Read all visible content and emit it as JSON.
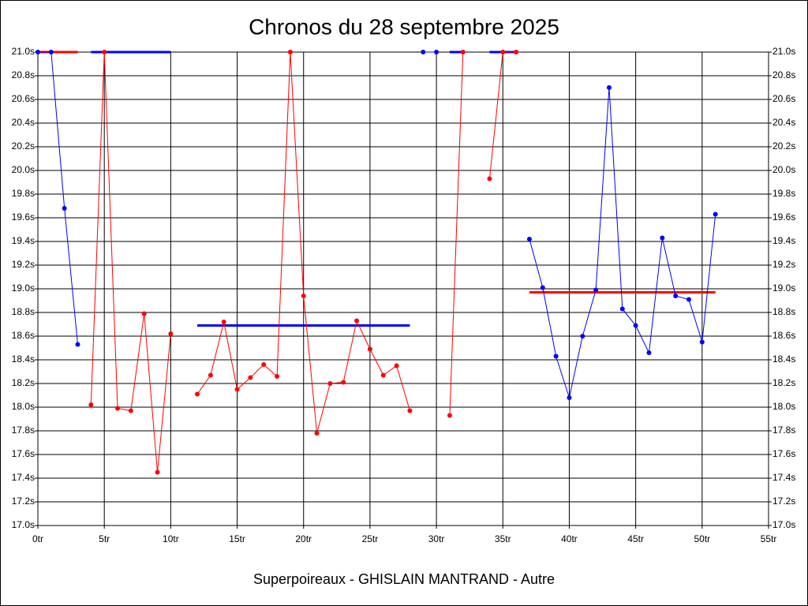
{
  "chart_data": {
    "type": "line",
    "title": "Chronos du 28 septembre 2025",
    "subtitle": "Superpoireaux - GHISLAIN MANTRAND - Autre",
    "x": [
      0,
      1,
      2,
      3,
      4,
      5,
      6,
      7,
      8,
      9,
      10,
      11,
      12,
      13,
      14,
      15,
      16,
      17,
      18,
      19,
      20,
      21,
      22,
      23,
      24,
      25,
      26,
      27,
      28,
      29,
      30,
      31,
      32,
      33,
      34,
      35,
      36,
      37,
      38,
      39,
      40,
      41,
      42,
      43,
      44,
      45,
      46,
      47,
      48,
      49,
      50,
      51
    ],
    "series": [
      {
        "color": "#ff0000",
        "values": [
          null,
          null,
          null,
          null,
          18.02,
          21.0,
          17.99,
          17.97,
          18.79,
          17.45,
          18.62,
          null,
          18.11,
          18.27,
          18.72,
          18.15,
          18.25,
          18.36,
          18.26,
          21.0,
          18.94,
          17.78,
          18.2,
          18.21,
          18.73,
          18.49,
          18.27,
          18.35,
          17.97,
          null,
          null,
          17.93,
          21.0,
          null,
          19.93,
          21.0,
          21.0,
          null,
          null,
          null,
          null,
          null,
          null,
          null,
          null,
          null,
          null,
          null,
          null,
          null,
          null,
          null
        ]
      },
      {
        "color": "#0000ff",
        "values": [
          21.0,
          21.0,
          19.68,
          18.53,
          null,
          null,
          null,
          null,
          null,
          null,
          null,
          null,
          null,
          null,
          null,
          null,
          null,
          null,
          null,
          null,
          null,
          null,
          null,
          null,
          null,
          null,
          null,
          null,
          null,
          21.0,
          21.0,
          null,
          null,
          null,
          null,
          null,
          null,
          19.42,
          19.01,
          18.43,
          18.08,
          18.6,
          18.99,
          20.7,
          18.83,
          18.69,
          18.46,
          19.43,
          18.94,
          18.91,
          18.55,
          19.63
        ]
      }
    ],
    "average_lines": [
      {
        "color": "#ff0000",
        "x": [
          0,
          3
        ],
        "value": 21.0
      },
      {
        "color": "#0000ff",
        "x": [
          4,
          10
        ],
        "value": 21.0
      },
      {
        "color": "#0000ff",
        "x": [
          12,
          28
        ],
        "value": 18.69
      },
      {
        "color": "#0000ff",
        "x": [
          31,
          32
        ],
        "value": 21.0
      },
      {
        "color": "#0000ff",
        "x": [
          34,
          36
        ],
        "value": 21.0
      },
      {
        "color": "#ff0000",
        "x": [
          37,
          51
        ],
        "value": 18.97
      }
    ],
    "xlim": [
      0,
      55
    ],
    "xticks": [
      {
        "value": 0,
        "label": "0tr"
      },
      {
        "value": 5,
        "label": "5tr"
      },
      {
        "value": 10,
        "label": "10tr"
      },
      {
        "value": 15,
        "label": "15tr"
      },
      {
        "value": 20,
        "label": "20tr"
      },
      {
        "value": 25,
        "label": "25tr"
      },
      {
        "value": 30,
        "label": "30tr"
      },
      {
        "value": 35,
        "label": "35tr"
      },
      {
        "value": 40,
        "label": "40tr"
      },
      {
        "value": 45,
        "label": "45tr"
      },
      {
        "value": 50,
        "label": "50tr"
      },
      {
        "value": 55,
        "label": "55tr"
      }
    ],
    "ylim": [
      17.0,
      21.0
    ],
    "yticks": [
      {
        "value": 17.0,
        "label": "17.0s"
      },
      {
        "value": 17.2,
        "label": "17.2s"
      },
      {
        "value": 17.4,
        "label": "17.4s"
      },
      {
        "value": 17.6,
        "label": "17.6s"
      },
      {
        "value": 17.8,
        "label": "17.8s"
      },
      {
        "value": 18.0,
        "label": "18.0s"
      },
      {
        "value": 18.2,
        "label": "18.2s"
      },
      {
        "value": 18.4,
        "label": "18.4s"
      },
      {
        "value": 18.6,
        "label": "18.6s"
      },
      {
        "value": 18.8,
        "label": "18.8s"
      },
      {
        "value": 19.0,
        "label": "19.0s"
      },
      {
        "value": 19.2,
        "label": "19.2s"
      },
      {
        "value": 19.4,
        "label": "19.4s"
      },
      {
        "value": 19.6,
        "label": "19.6s"
      },
      {
        "value": 19.8,
        "label": "19.8s"
      },
      {
        "value": 20.0,
        "label": "20.0s"
      },
      {
        "value": 20.2,
        "label": "20.2s"
      },
      {
        "value": 20.4,
        "label": "20.4s"
      },
      {
        "value": 20.6,
        "label": "20.6s"
      },
      {
        "value": 20.8,
        "label": "20.8s"
      },
      {
        "value": 21.0,
        "label": "21.0s"
      }
    ],
    "grid": true
  }
}
